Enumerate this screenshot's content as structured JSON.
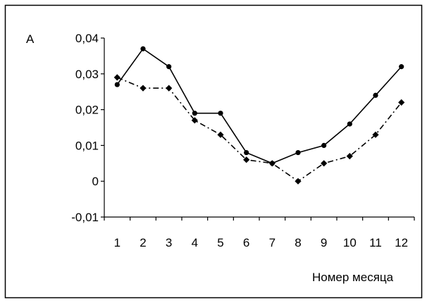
{
  "chart_data": {
    "type": "line",
    "ylabel": "A",
    "xlabel": "Номер месяца",
    "ylim": [
      -0.01,
      0.04
    ],
    "yticks": [
      -0.01,
      0,
      0.01,
      0.02,
      0.03,
      0.04
    ],
    "ytick_labels": [
      "-0,01",
      "0",
      "0,01",
      "0,02",
      "0,03",
      "0,04"
    ],
    "categories": [
      "1",
      "2",
      "3",
      "4",
      "5",
      "6",
      "7",
      "8",
      "9",
      "10",
      "11",
      "12"
    ],
    "series": [
      {
        "line": "solid",
        "marker": "circle",
        "color": "#000000",
        "values": [
          0.027,
          0.037,
          0.032,
          0.019,
          0.019,
          0.008,
          0.005,
          0.008,
          0.01,
          0.016,
          0.024,
          0.032
        ]
      },
      {
        "line": "dash-dot",
        "marker": "diamond",
        "color": "#000000",
        "values": [
          0.029,
          0.026,
          0.026,
          0.017,
          0.013,
          0.006,
          0.005,
          0.0,
          0.005,
          0.007,
          0.013,
          0.022
        ]
      }
    ],
    "grid": false,
    "legend": "none",
    "frame": true
  }
}
